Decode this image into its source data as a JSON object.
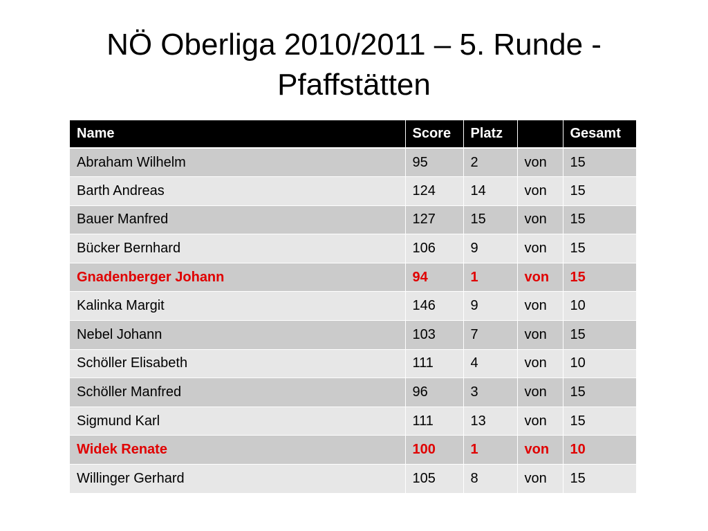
{
  "title": "NÖ Oberliga 2010/2011 – 5. Runde - Pfaffstätten",
  "table": {
    "headers": [
      "Name",
      "Score",
      "Platz",
      "",
      "Gesamt"
    ],
    "rows": [
      {
        "name": "Abraham Wilhelm",
        "score": "95",
        "platz": "2",
        "von": "von",
        "gesamt": "15",
        "highlight": false
      },
      {
        "name": "Barth Andreas",
        "score": "124",
        "platz": "14",
        "von": "von",
        "gesamt": "15",
        "highlight": false
      },
      {
        "name": "Bauer Manfred",
        "score": "127",
        "platz": "15",
        "von": "von",
        "gesamt": "15",
        "highlight": false
      },
      {
        "name": "Bücker Bernhard",
        "score": "106",
        "platz": "9",
        "von": "von",
        "gesamt": "15",
        "highlight": false
      },
      {
        "name": "Gnadenberger Johann",
        "score": "94",
        "platz": "1",
        "von": "von",
        "gesamt": "15",
        "highlight": true
      },
      {
        "name": "Kalinka Margit",
        "score": "146",
        "platz": "9",
        "von": "von",
        "gesamt": "10",
        "highlight": false
      },
      {
        "name": "Nebel Johann",
        "score": "103",
        "platz": "7",
        "von": "von",
        "gesamt": "15",
        "highlight": false
      },
      {
        "name": "Schöller Elisabeth",
        "score": "111",
        "platz": "4",
        "von": "von",
        "gesamt": "10",
        "highlight": false
      },
      {
        "name": "Schöller Manfred",
        "score": "96",
        "platz": "3",
        "von": "von",
        "gesamt": "15",
        "highlight": false
      },
      {
        "name": "Sigmund Karl",
        "score": "111",
        "platz": "13",
        "von": "von",
        "gesamt": "15",
        "highlight": false
      },
      {
        "name": "Widek Renate",
        "score": "100",
        "platz": "1",
        "von": "von",
        "gesamt": "10",
        "highlight": true
      },
      {
        "name": "Willinger Gerhard",
        "score": "105",
        "platz": "8",
        "von": "von",
        "gesamt": "15",
        "highlight": false
      }
    ]
  },
  "colors": {
    "header_background": "#000000",
    "header_text": "#ffffff",
    "row_dark": "#cbcbcb",
    "row_light": "#e7e7e7",
    "highlight_text": "#e00000"
  }
}
